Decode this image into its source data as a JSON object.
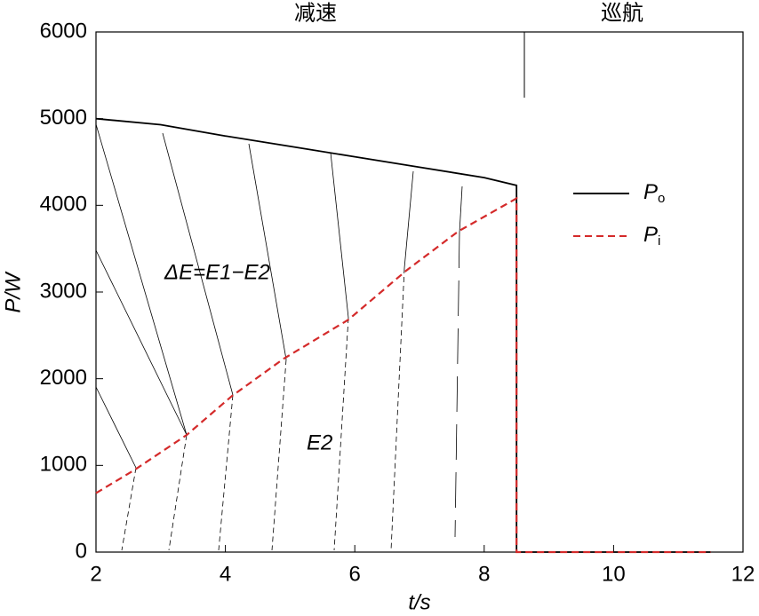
{
  "chart_data": {
    "type": "line",
    "x_label": "t/s",
    "y_label": "P/W",
    "xlim": [
      2,
      12
    ],
    "xticks": [
      2,
      4,
      6,
      8,
      10,
      12
    ],
    "ylim": [
      0,
      6000
    ],
    "yticks": [
      0,
      1000,
      2000,
      3000,
      4000,
      5000,
      6000
    ],
    "annotations": [
      "减速",
      "巡航",
      "ΔE=E1−E2",
      "E2"
    ],
    "legend": "right",
    "series": [
      {
        "name": "Po",
        "color": "#000000",
        "dash": false,
        "x": [
          2,
          3,
          4,
          5,
          6,
          7,
          8,
          8.5,
          8.5,
          11.5
        ],
        "values": [
          5000,
          4930,
          4800,
          4680,
          4560,
          4440,
          4320,
          4230,
          0,
          0
        ]
      },
      {
        "name": "Pi",
        "color": "#d42a2a",
        "dash": true,
        "x": [
          2,
          2.6,
          3.4,
          4.1,
          4.9,
          5.9,
          6.8,
          7.6,
          8.5,
          8.5,
          11.5
        ],
        "values": [
          680,
          950,
          1350,
          1800,
          2230,
          2680,
          3250,
          3700,
          4080,
          0,
          0
        ]
      }
    ]
  }
}
